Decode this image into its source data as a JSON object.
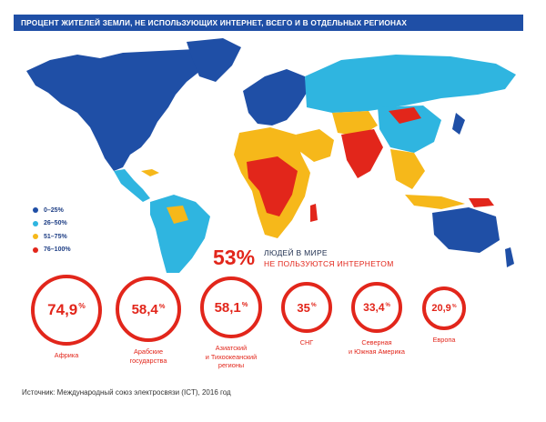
{
  "title": "ПРОЦЕНТ ЖИТЕЛЕЙ ЗЕМЛИ, НЕ ИСПОЛЬЗУЮЩИХ ИНТЕРНЕТ, ВСЕГО И В ОТДЕЛЬНЫХ РЕГИОНАХ",
  "colors": {
    "band_0_25": "#1f4fa6",
    "band_26_50": "#2fb5e0",
    "band_51_75": "#f6b81a",
    "band_76_100": "#e2261b",
    "accent": "#e2261b"
  },
  "legend": [
    {
      "label": "0–25%",
      "color_key": "band_0_25"
    },
    {
      "label": "26–50%",
      "color_key": "band_26_50"
    },
    {
      "label": "51–75%",
      "color_key": "band_51_75"
    },
    {
      "label": "76–100%",
      "color_key": "band_76_100"
    }
  ],
  "headline": {
    "percent": "53%",
    "line1": "ЛЮДЕЙ В МИРЕ",
    "line2": "НЕ ПОЛЬЗУЮТСЯ ИНТЕРНЕТОМ"
  },
  "regions": [
    {
      "value": "74,9",
      "percent_sign": "%",
      "label": [
        "Африка"
      ]
    },
    {
      "value": "58,4",
      "percent_sign": "%",
      "label": [
        "Арабские",
        "государства"
      ]
    },
    {
      "value": "58,1",
      "percent_sign": "%",
      "label": [
        "Азиатский",
        "и Тихоокеанский",
        "регионы"
      ]
    },
    {
      "value": "35",
      "percent_sign": "%",
      "label": [
        "СНГ"
      ]
    },
    {
      "value": "33,4",
      "percent_sign": "%",
      "label": [
        "Северная",
        "и Южная Америка"
      ]
    },
    {
      "value": "20,9",
      "percent_sign": "%",
      "label": [
        "Европа"
      ]
    }
  ],
  "source": "Источник: Международный союз электросвязи (ICT), 2016 год"
}
